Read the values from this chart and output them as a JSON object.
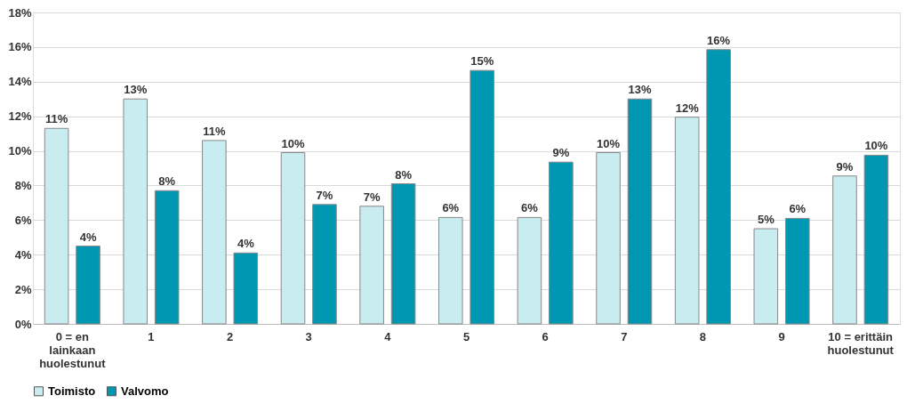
{
  "chart_data": {
    "type": "bar",
    "categories": [
      "0 = en lainkaan huolestunut",
      "1",
      "2",
      "3",
      "4",
      "5",
      "6",
      "7",
      "8",
      "9",
      "10 = erittäin huolestunut"
    ],
    "series": [
      {
        "name": "Toimisto",
        "color": "#c9ecf0",
        "values": [
          11.3,
          13.0,
          10.6,
          9.9,
          6.8,
          6.15,
          6.15,
          9.9,
          11.95,
          5.5,
          8.55
        ],
        "value_labels": [
          "11%",
          "13%",
          "11%",
          "10%",
          "7%",
          "6%",
          "6%",
          "10%",
          "12%",
          "5%",
          "9%"
        ]
      },
      {
        "name": "Valvomo",
        "color": "#0097b2",
        "values": [
          4.5,
          7.7,
          4.1,
          6.9,
          8.1,
          14.65,
          9.35,
          13.0,
          15.85,
          6.1,
          9.75
        ],
        "value_labels": [
          "4%",
          "8%",
          "4%",
          "7%",
          "8%",
          "15%",
          "9%",
          "13%",
          "16%",
          "6%",
          "10%"
        ]
      }
    ],
    "ylim": [
      0,
      18
    ],
    "yticks": [
      {
        "value": 0,
        "label": "0%"
      },
      {
        "value": 2,
        "label": "2%"
      },
      {
        "value": 4,
        "label": "4%"
      },
      {
        "value": 6,
        "label": "6%"
      },
      {
        "value": 8,
        "label": "8%"
      },
      {
        "value": 10,
        "label": "10%"
      },
      {
        "value": 12,
        "label": "12%"
      },
      {
        "value": 14,
        "label": "14%"
      },
      {
        "value": 16,
        "label": "16%"
      },
      {
        "value": 18,
        "label": "18%"
      }
    ],
    "grid": "y",
    "legend": "bottom"
  }
}
